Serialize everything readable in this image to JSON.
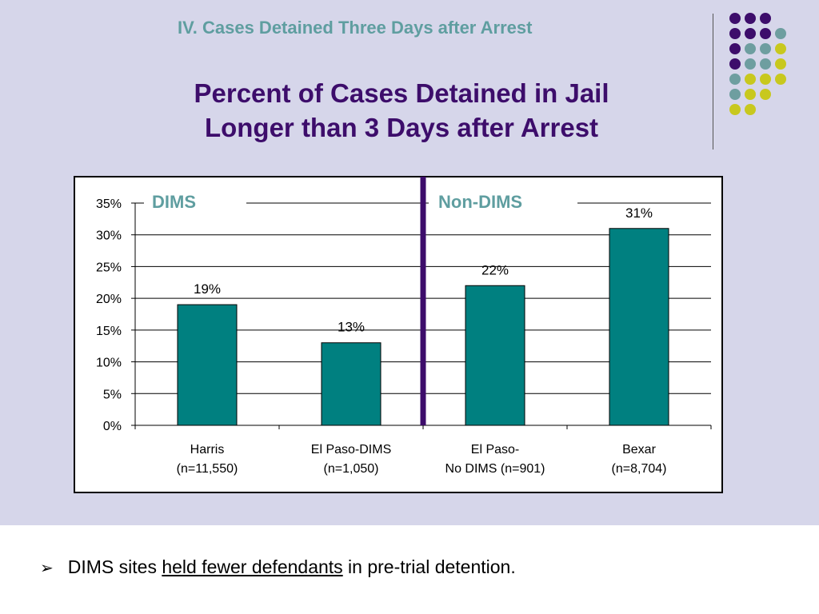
{
  "slide": {
    "section_title": "IV.  Cases Detained Three Days after Arrest",
    "title_line1": "Percent of Cases Detained in Jail",
    "title_line2": "Longer than 3 Days after Arrest",
    "bullet": {
      "symbol": "➢",
      "pre": "DIMS sites ",
      "underlined": "held fewer defendants",
      "post": " in pre-trial detention."
    },
    "colors": {
      "background": "#d6d6ea",
      "bar": "#008080",
      "divider": "#3d0d6b",
      "title": "#3d0d6b",
      "section_title": "#5f9ea0",
      "dot_purple": "#3d0d6b",
      "dot_teal": "#6e9ea0",
      "dot_yellow": "#c8c81e"
    }
  },
  "chart_data": {
    "type": "bar",
    "title": "",
    "xlabel": "",
    "ylabel": "",
    "ylim": [
      0,
      35
    ],
    "yticks": [
      "0%",
      "5%",
      "10%",
      "15%",
      "20%",
      "25%",
      "30%",
      "35%"
    ],
    "grid": true,
    "categories": [
      [
        "Harris",
        "(n=11,550)"
      ],
      [
        "El Paso-DIMS",
        "(n=1,050)"
      ],
      [
        "El Paso-",
        "No DIMS (n=901)"
      ],
      [
        "Bexar",
        "(n=8,704)"
      ]
    ],
    "values": [
      19,
      13,
      22,
      31
    ],
    "data_labels": [
      "19%",
      "13%",
      "22%",
      "31%"
    ],
    "group_labels": [
      "DIMS",
      "Non-DIMS"
    ]
  }
}
